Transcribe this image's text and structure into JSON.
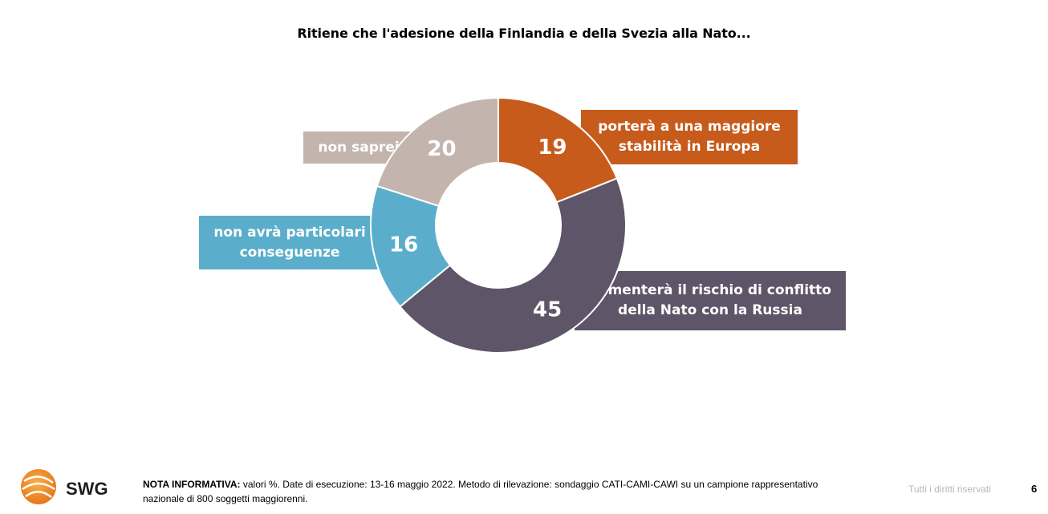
{
  "title": "Ritiene che l'adesione della Finlandia e della Svezia alla Nato...",
  "chart_data": {
    "type": "pie",
    "donut": true,
    "unit": "%",
    "slices": [
      {
        "label": "porterà a una maggiore stabilità in Europa",
        "value": 19,
        "color": "#c75b1c",
        "label_color": "#c75b1c"
      },
      {
        "label": "aumenterà il rischio di conflitto della Nato con la Russia",
        "value": 45,
        "color": "#5e5568",
        "label_color": "#5e5568"
      },
      {
        "label": "non avrà particolari conseguenze",
        "value": 16,
        "color": "#5aaecb",
        "label_color": "#5aaecb"
      },
      {
        "label": "non saprei",
        "value": 20,
        "color": "#c3b5ad",
        "label_color": "#c3b5ad"
      }
    ]
  },
  "footer": {
    "logo_text": "SWG",
    "note_bold": "NOTA INFORMATIVA:",
    "note_text": " valori %. Date di esecuzione: 13-16 maggio 2022. Metodo di rilevazione: sondaggio CATI-CAMI-CAWI su un campione rappresentativo nazionale di 800 soggetti maggiorenni.",
    "rights": "Tutti i diritti riservati",
    "page_number": "6"
  }
}
